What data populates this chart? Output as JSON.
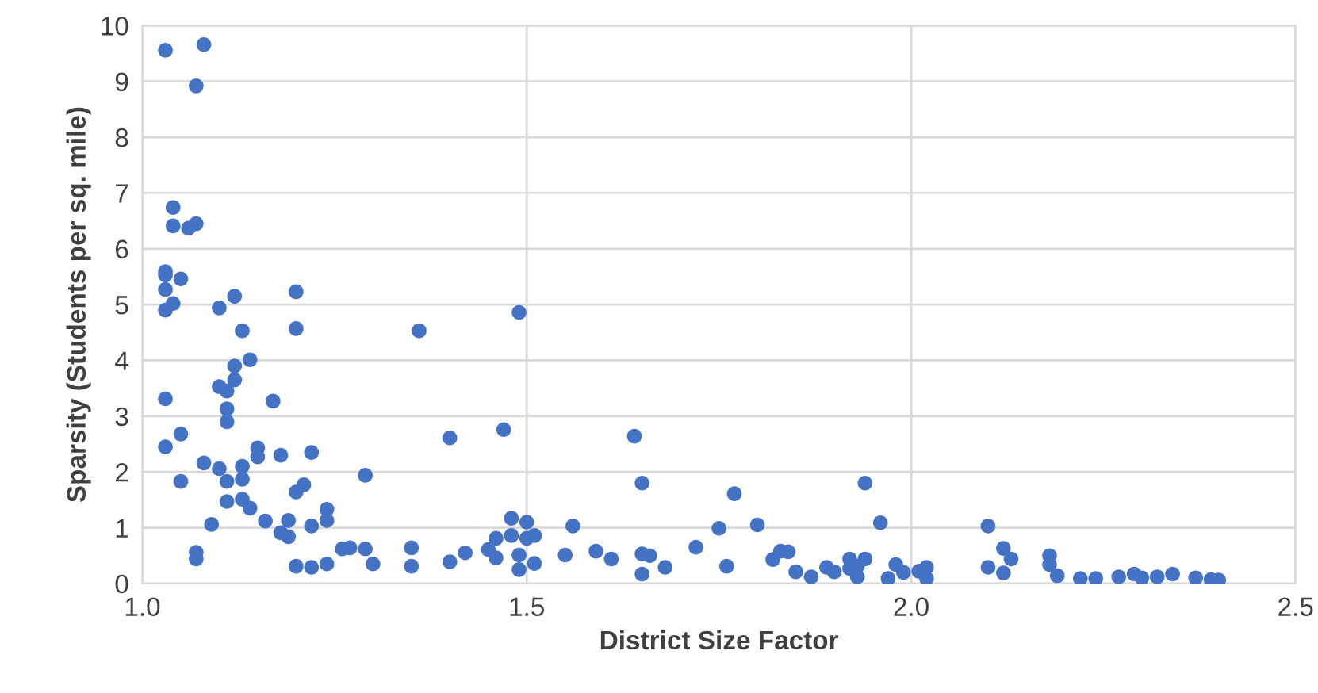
{
  "chart_data": {
    "type": "scatter",
    "xlabel": "District Size Factor",
    "ylabel": "Sparsity (Students per sq. mile)",
    "xlim": [
      1.0,
      2.5
    ],
    "xticks": [
      {
        "value": 1.0,
        "label": "1.0"
      },
      1.5,
      {
        "value": 2.0,
        "label": "2.0"
      },
      2.5
    ],
    "ylim": [
      0,
      10
    ],
    "yticks": [
      0,
      1,
      2,
      3,
      4,
      5,
      6,
      7,
      8,
      9,
      10
    ],
    "grid": true,
    "marker": "circle",
    "series": [
      {
        "color": "#4472c4",
        "x": [
          1.03,
          1.08,
          1.07,
          1.04,
          1.04,
          1.06,
          1.07,
          1.03,
          1.03,
          1.05,
          1.03,
          1.03,
          1.04,
          1.1,
          1.12,
          1.2,
          1.13,
          1.2,
          1.36,
          1.49,
          1.14,
          1.12,
          1.12,
          1.1,
          1.11,
          1.11,
          1.11,
          1.03,
          1.17,
          1.05,
          1.03,
          1.4,
          1.47,
          1.15,
          1.15,
          1.18,
          1.22,
          1.08,
          1.1,
          1.13,
          1.05,
          1.11,
          1.13,
          1.29,
          1.2,
          1.21,
          1.11,
          1.13,
          1.14,
          1.24,
          1.24,
          1.16,
          1.19,
          1.18,
          1.19,
          1.22,
          1.09,
          1.07,
          1.07,
          1.2,
          1.22,
          1.24,
          1.26,
          1.27,
          1.29,
          1.3,
          1.35,
          1.35,
          1.4,
          1.42,
          1.46,
          1.45,
          1.46,
          1.48,
          1.5,
          1.48,
          1.5,
          1.51,
          1.49,
          1.49,
          1.51,
          1.56,
          1.55,
          1.59,
          1.61,
          1.64,
          1.65,
          1.65,
          1.66,
          1.65,
          1.68,
          1.72,
          1.75,
          1.76,
          1.77,
          1.8,
          1.82,
          1.83,
          1.84,
          1.85,
          1.87,
          1.89,
          1.9,
          1.92,
          1.92,
          1.93,
          1.94,
          1.93,
          1.94,
          1.96,
          1.97,
          1.98,
          1.99,
          2.01,
          2.02,
          2.02,
          2.1,
          2.1,
          2.12,
          2.13,
          2.12,
          2.18,
          2.18,
          2.19,
          2.22,
          2.24,
          2.27,
          2.29,
          2.3,
          2.32,
          2.34,
          2.37,
          2.39,
          2.4
        ],
        "values": [
          9.56,
          9.66,
          8.92,
          6.74,
          6.41,
          6.37,
          6.45,
          5.59,
          5.53,
          5.46,
          5.27,
          4.9,
          5.02,
          4.94,
          5.15,
          5.23,
          4.53,
          4.57,
          4.53,
          4.86,
          4.01,
          3.9,
          3.65,
          3.53,
          3.45,
          3.13,
          2.9,
          3.31,
          3.27,
          2.68,
          2.45,
          2.61,
          2.76,
          2.43,
          2.27,
          2.3,
          2.35,
          2.16,
          2.06,
          2.1,
          1.83,
          1.83,
          1.87,
          1.94,
          1.64,
          1.77,
          1.47,
          1.51,
          1.35,
          1.33,
          1.13,
          1.12,
          1.13,
          0.91,
          0.84,
          1.03,
          1.06,
          0.56,
          0.44,
          0.31,
          0.29,
          0.35,
          0.62,
          0.64,
          0.62,
          0.35,
          0.64,
          0.31,
          0.39,
          0.55,
          0.81,
          0.61,
          0.46,
          1.17,
          1.1,
          0.86,
          0.81,
          0.86,
          0.51,
          0.25,
          0.36,
          1.03,
          0.51,
          0.58,
          0.44,
          2.64,
          1.8,
          0.53,
          0.5,
          0.17,
          0.29,
          0.65,
          0.99,
          0.31,
          1.61,
          1.05,
          0.43,
          0.58,
          0.57,
          0.21,
          0.12,
          0.29,
          0.21,
          0.44,
          0.27,
          0.12,
          0.44,
          0.31,
          1.8,
          1.09,
          0.09,
          0.34,
          0.2,
          0.22,
          0.09,
          0.29,
          1.03,
          0.29,
          0.63,
          0.44,
          0.19,
          0.5,
          0.34,
          0.14,
          0.09,
          0.09,
          0.12,
          0.17,
          0.1,
          0.12,
          0.17,
          0.1,
          0.07,
          0.06
        ]
      }
    ]
  }
}
